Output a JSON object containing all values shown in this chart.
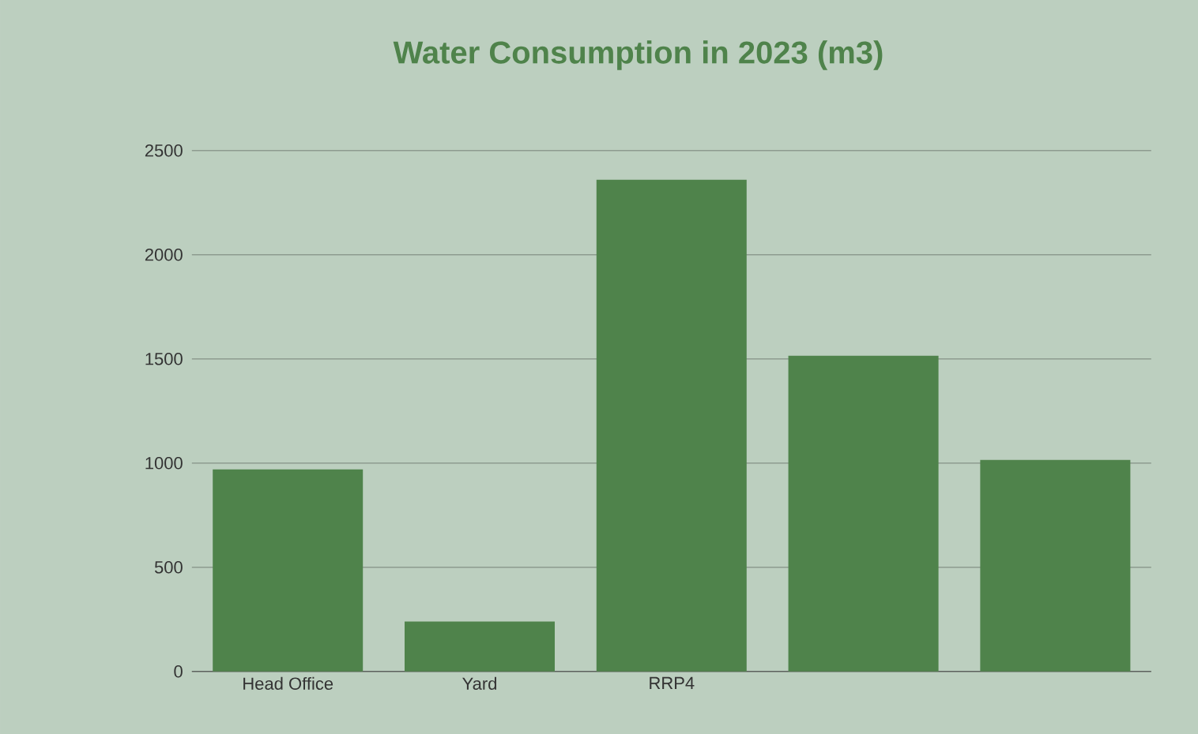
{
  "chart_data": {
    "type": "bar",
    "title": "Water Consumption in 2023 (m3)",
    "categories": [
      "Head Office",
      "Yard",
      "RRP4",
      null,
      null
    ],
    "values": [
      970,
      240,
      2360,
      1515,
      1015
    ],
    "color": "#4f834b",
    "ylim": [
      0,
      2500
    ],
    "yticks": [
      0,
      500,
      1000,
      1500,
      2000,
      2500
    ],
    "grid": "y"
  }
}
